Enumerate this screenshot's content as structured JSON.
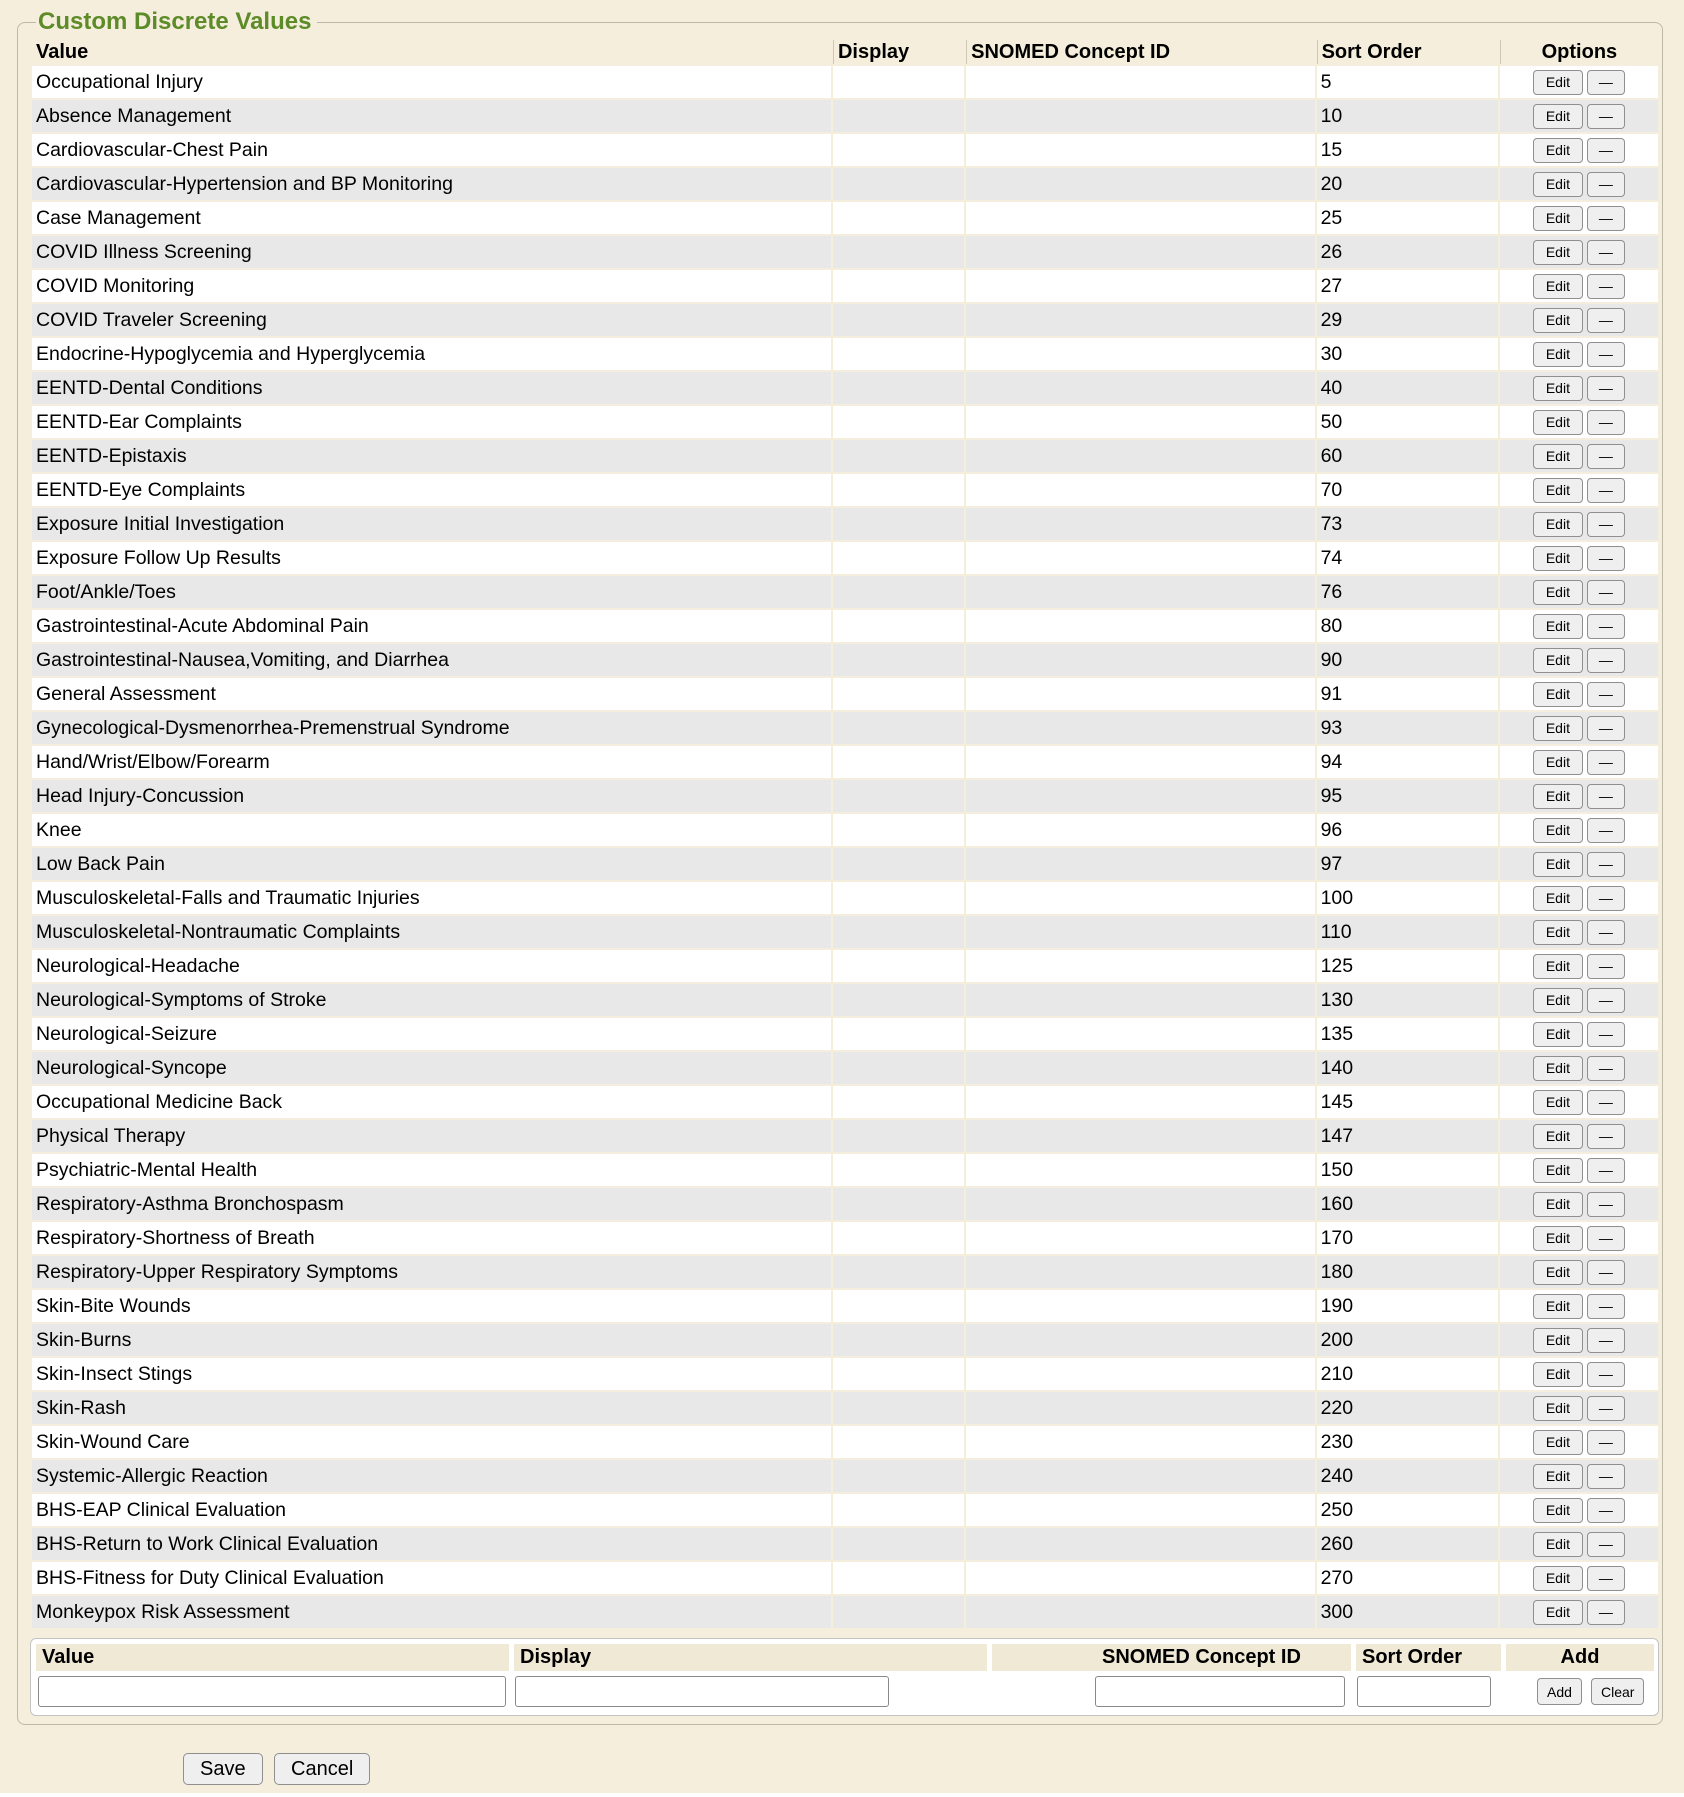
{
  "legend": "Custom Discrete Values",
  "colors": {
    "accent_green": "#5d8b28",
    "page_bg": "#f5eedc",
    "row_alt": "#e8e8e8",
    "form_header_bg": "#f0e9d6"
  },
  "table": {
    "headers": {
      "value": "Value",
      "display": "Display",
      "snomed": "SNOMED Concept ID",
      "sort_order": "Sort Order",
      "options": "Options"
    },
    "row_buttons": {
      "edit": "Edit",
      "remove": "—"
    },
    "rows": [
      {
        "value": "Occupational Injury",
        "display": "",
        "snomed": "",
        "sort_order": "5"
      },
      {
        "value": "Absence Management",
        "display": "",
        "snomed": "",
        "sort_order": "10"
      },
      {
        "value": "Cardiovascular-Chest Pain",
        "display": "",
        "snomed": "",
        "sort_order": "15"
      },
      {
        "value": "Cardiovascular-Hypertension and BP Monitoring",
        "display": "",
        "snomed": "",
        "sort_order": "20"
      },
      {
        "value": "Case Management",
        "display": "",
        "snomed": "",
        "sort_order": "25"
      },
      {
        "value": "COVID Illness Screening",
        "display": "",
        "snomed": "",
        "sort_order": "26"
      },
      {
        "value": "COVID Monitoring",
        "display": "",
        "snomed": "",
        "sort_order": "27"
      },
      {
        "value": "COVID Traveler Screening",
        "display": "",
        "snomed": "",
        "sort_order": "29"
      },
      {
        "value": "Endocrine-Hypoglycemia and Hyperglycemia",
        "display": "",
        "snomed": "",
        "sort_order": "30"
      },
      {
        "value": "EENTD-Dental Conditions",
        "display": "",
        "snomed": "",
        "sort_order": "40"
      },
      {
        "value": "EENTD-Ear Complaints",
        "display": "",
        "snomed": "",
        "sort_order": "50"
      },
      {
        "value": "EENTD-Epistaxis",
        "display": "",
        "snomed": "",
        "sort_order": "60"
      },
      {
        "value": "EENTD-Eye Complaints",
        "display": "",
        "snomed": "",
        "sort_order": "70"
      },
      {
        "value": "Exposure Initial Investigation",
        "display": "",
        "snomed": "",
        "sort_order": "73"
      },
      {
        "value": "Exposure Follow Up Results",
        "display": "",
        "snomed": "",
        "sort_order": "74"
      },
      {
        "value": "Foot/Ankle/Toes",
        "display": "",
        "snomed": "",
        "sort_order": "76"
      },
      {
        "value": "Gastrointestinal-Acute Abdominal Pain",
        "display": "",
        "snomed": "",
        "sort_order": "80"
      },
      {
        "value": "Gastrointestinal-Nausea,Vomiting, and Diarrhea",
        "display": "",
        "snomed": "",
        "sort_order": "90"
      },
      {
        "value": "General Assessment",
        "display": "",
        "snomed": "",
        "sort_order": "91"
      },
      {
        "value": "Gynecological-Dysmenorrhea-Premenstrual Syndrome",
        "display": "",
        "snomed": "",
        "sort_order": "93"
      },
      {
        "value": "Hand/Wrist/Elbow/Forearm",
        "display": "",
        "snomed": "",
        "sort_order": "94"
      },
      {
        "value": "Head Injury-Concussion",
        "display": "",
        "snomed": "",
        "sort_order": "95"
      },
      {
        "value": "Knee",
        "display": "",
        "snomed": "",
        "sort_order": "96"
      },
      {
        "value": "Low Back Pain",
        "display": "",
        "snomed": "",
        "sort_order": "97"
      },
      {
        "value": "Musculoskeletal-Falls and Traumatic Injuries",
        "display": "",
        "snomed": "",
        "sort_order": "100"
      },
      {
        "value": "Musculoskeletal-Nontraumatic Complaints",
        "display": "",
        "snomed": "",
        "sort_order": "110"
      },
      {
        "value": "Neurological-Headache",
        "display": "",
        "snomed": "",
        "sort_order": "125"
      },
      {
        "value": "Neurological-Symptoms of Stroke",
        "display": "",
        "snomed": "",
        "sort_order": "130"
      },
      {
        "value": "Neurological-Seizure",
        "display": "",
        "snomed": "",
        "sort_order": "135"
      },
      {
        "value": "Neurological-Syncope",
        "display": "",
        "snomed": "",
        "sort_order": "140"
      },
      {
        "value": "Occupational Medicine Back",
        "display": "",
        "snomed": "",
        "sort_order": "145"
      },
      {
        "value": "Physical Therapy",
        "display": "",
        "snomed": "",
        "sort_order": "147"
      },
      {
        "value": "Psychiatric-Mental Health",
        "display": "",
        "snomed": "",
        "sort_order": "150"
      },
      {
        "value": "Respiratory-Asthma Bronchospasm",
        "display": "",
        "snomed": "",
        "sort_order": "160"
      },
      {
        "value": "Respiratory-Shortness of Breath",
        "display": "",
        "snomed": "",
        "sort_order": "170"
      },
      {
        "value": "Respiratory-Upper Respiratory Symptoms",
        "display": "",
        "snomed": "",
        "sort_order": "180"
      },
      {
        "value": "Skin-Bite Wounds",
        "display": "",
        "snomed": "",
        "sort_order": "190"
      },
      {
        "value": "Skin-Burns",
        "display": "",
        "snomed": "",
        "sort_order": "200"
      },
      {
        "value": "Skin-Insect Stings",
        "display": "",
        "snomed": "",
        "sort_order": "210"
      },
      {
        "value": "Skin-Rash",
        "display": "",
        "snomed": "",
        "sort_order": "220"
      },
      {
        "value": "Skin-Wound Care",
        "display": "",
        "snomed": "",
        "sort_order": "230"
      },
      {
        "value": "Systemic-Allergic Reaction",
        "display": "",
        "snomed": "",
        "sort_order": "240"
      },
      {
        "value": "BHS-EAP Clinical Evaluation",
        "display": "",
        "snomed": "",
        "sort_order": "250"
      },
      {
        "value": "BHS-Return to Work Clinical Evaluation",
        "display": "",
        "snomed": "",
        "sort_order": "260"
      },
      {
        "value": "BHS-Fitness for Duty Clinical Evaluation",
        "display": "",
        "snomed": "",
        "sort_order": "270"
      },
      {
        "value": "Monkeypox Risk Assessment",
        "display": "",
        "snomed": "",
        "sort_order": "300"
      }
    ]
  },
  "add_form": {
    "headers": {
      "value": "Value",
      "display": "Display",
      "snomed": "SNOMED Concept ID",
      "sort_order": "Sort Order",
      "add": "Add"
    },
    "inputs": {
      "value": "",
      "display": "",
      "snomed": "",
      "sort_order": ""
    },
    "buttons": {
      "add": "Add",
      "clear": "Clear"
    }
  },
  "footer": {
    "save": "Save",
    "cancel": "Cancel"
  }
}
